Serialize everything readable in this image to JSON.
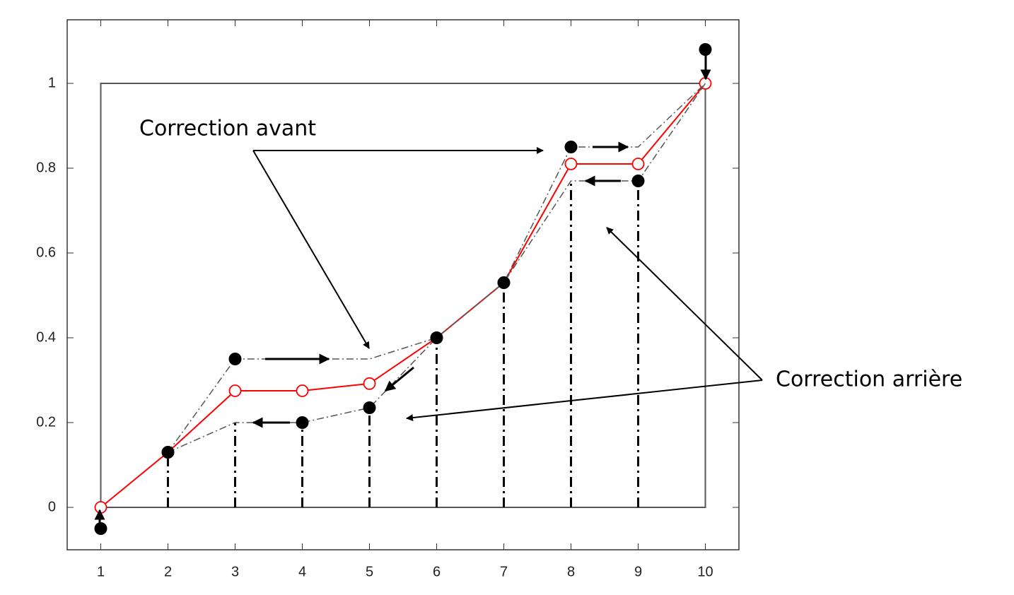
{
  "chart_data": {
    "type": "line",
    "x": [
      1,
      2,
      3,
      4,
      5,
      6,
      7,
      8,
      9,
      10
    ],
    "xlim": [
      0.5,
      10.5
    ],
    "ylim": [
      -0.1,
      1.15
    ],
    "xticks": [
      1,
      2,
      3,
      4,
      5,
      6,
      7,
      8,
      9,
      10
    ],
    "yticks": [
      0,
      0.2,
      0.4,
      0.6,
      0.8,
      1
    ],
    "series": [
      {
        "color": "#ff0000",
        "line": "solid",
        "marker": "open-circle",
        "values": [
          0,
          0.13,
          0.275,
          0.275,
          0.292,
          0.4,
          0.53,
          0.81,
          0.81,
          1.0
        ]
      },
      {
        "color": "#555555",
        "line": "dash-dot",
        "marker": "none",
        "values": [
          null,
          0.13,
          0.35,
          0.35,
          0.35,
          0.4,
          0.53,
          0.85,
          0.85,
          1.0
        ]
      },
      {
        "color": "#555555",
        "line": "dash-dot",
        "marker": "none",
        "values": [
          null,
          0.13,
          0.2,
          0.2,
          0.235,
          0.4,
          0.53,
          0.77,
          0.77,
          1.0
        ]
      },
      {
        "color": "#000000",
        "line": "none",
        "marker": "filled-circle",
        "values": [
          -0.05,
          0.13,
          0.35,
          0.2,
          0.235,
          0.4,
          0.53,
          0.85,
          0.77,
          1.08
        ]
      }
    ],
    "annotations": [
      {
        "text": "Correction avant"
      },
      {
        "text": "Correction arrière"
      }
    ]
  }
}
